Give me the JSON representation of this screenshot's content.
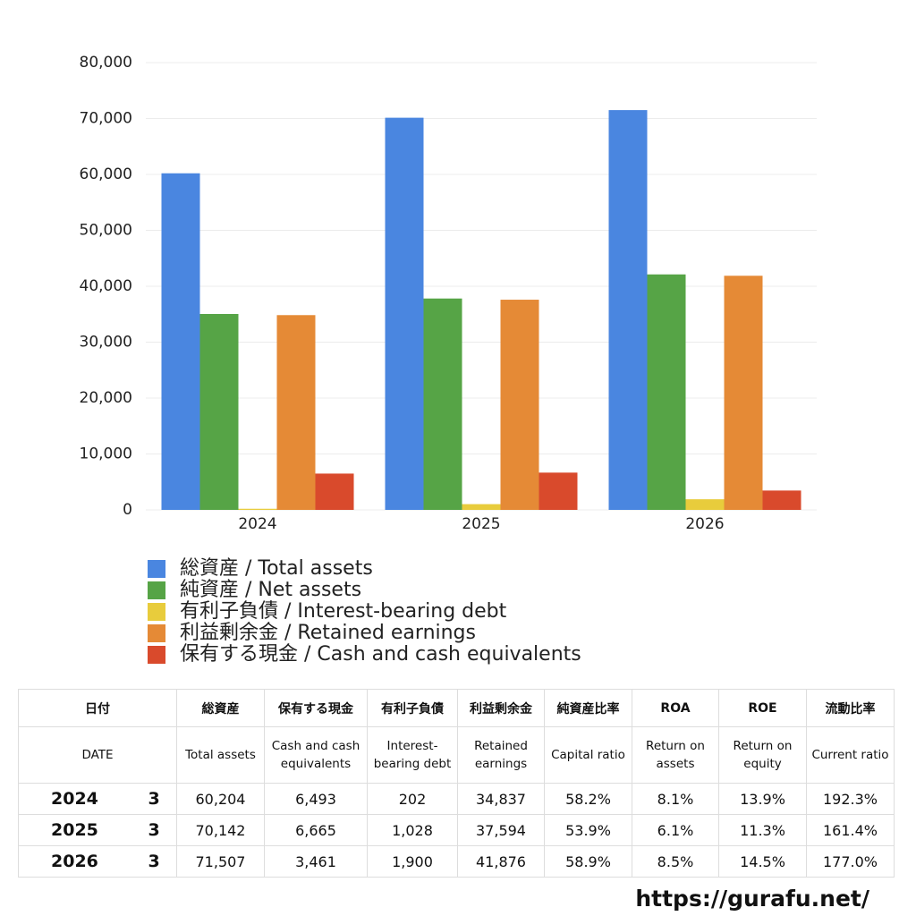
{
  "chart_data": {
    "type": "bar",
    "categories": [
      "2024",
      "2025",
      "2026"
    ],
    "series": [
      {
        "name": "総資産 / Total assets",
        "color": "#4a86e0",
        "values": [
          60204,
          70142,
          71507
        ]
      },
      {
        "name": "純資産 / Net assets",
        "color": "#56a446",
        "values": [
          35039,
          37807,
          42118
        ]
      },
      {
        "name": "有利子負債 / Interest-bearing debt",
        "color": "#e8cc3c",
        "values": [
          202,
          1028,
          1900
        ]
      },
      {
        "name": "利益剰余金 / Retained earnings",
        "color": "#e58a36",
        "values": [
          34837,
          37594,
          41876
        ]
      },
      {
        "name": "保有する現金 /  Cash and cash equivalents",
        "color": "#d94a2c",
        "values": [
          6493,
          6665,
          3461
        ]
      }
    ],
    "ylim": [
      0,
      80000
    ],
    "yticks": [
      0,
      {
        "value": 10000,
        "label": "10,000"
      },
      {
        "value": 20000,
        "label": "20,000"
      },
      {
        "value": 30000,
        "label": "30,000"
      },
      {
        "value": 40000,
        "label": "40,000"
      },
      {
        "value": 50000,
        "label": "50,000"
      },
      {
        "value": 60000,
        "label": "60,000"
      },
      {
        "value": 70000,
        "label": "70,000"
      },
      {
        "value": 80000,
        "label": "80,000"
      }
    ],
    "grid": true
  },
  "table": {
    "header_ja": [
      "日付",
      "総資産",
      "保有する現金",
      "有利子負債",
      "利益剰余金",
      "純資産比率",
      "ROA",
      "ROE",
      "流動比率"
    ],
    "header_en": [
      "DATE",
      "Total assets",
      "Cash and cash equivalents",
      "Interest-bearing debt",
      "Retained earnings",
      "Capital ratio",
      "Return on assets",
      "Return on equity",
      "Current ratio"
    ],
    "rows": [
      [
        "2024",
        "3",
        "60,204",
        "6,493",
        "202",
        "34,837",
        "58.2%",
        "8.1%",
        "13.9%",
        "192.3%"
      ],
      [
        "2025",
        "3",
        "70,142",
        "6,665",
        "1,028",
        "37,594",
        "53.9%",
        "6.1%",
        "11.3%",
        "161.4%"
      ],
      [
        "2026",
        "3",
        "71,507",
        "3,461",
        "1,900",
        "41,876",
        "58.9%",
        "8.5%",
        "14.5%",
        "177.0%"
      ]
    ]
  },
  "footer": "https://gurafu.net/"
}
